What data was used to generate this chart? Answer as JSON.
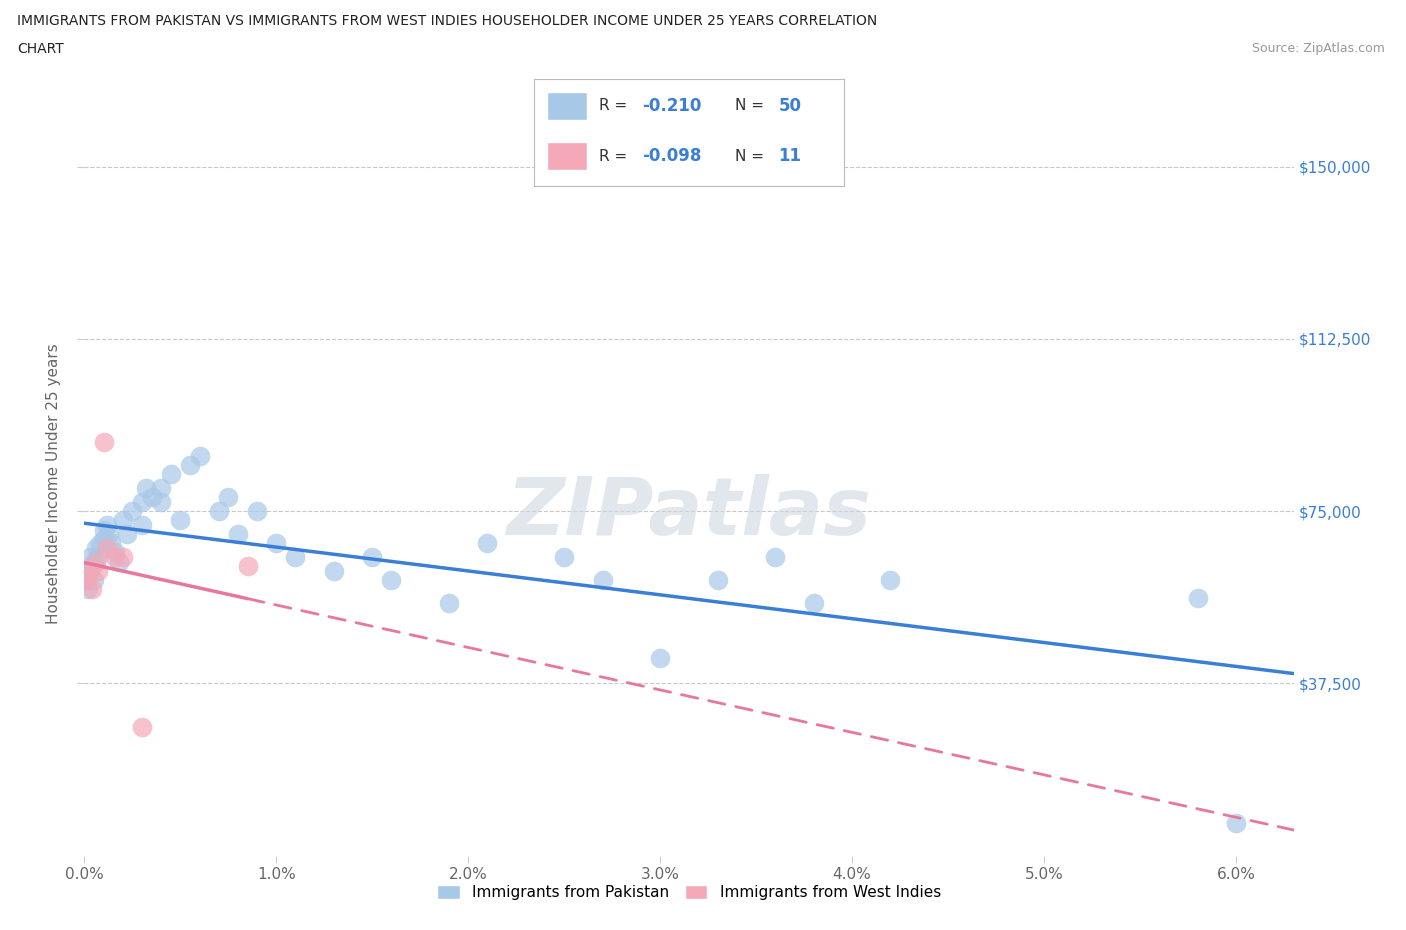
{
  "title_line1": "IMMIGRANTS FROM PAKISTAN VS IMMIGRANTS FROM WEST INDIES HOUSEHOLDER INCOME UNDER 25 YEARS CORRELATION",
  "title_line2": "CHART",
  "source_text": "Source: ZipAtlas.com",
  "ylabel": "Householder Income Under 25 years",
  "xlim": [
    0.0,
    0.063
  ],
  "ylim": [
    0,
    162000
  ],
  "ytick_values": [
    37500,
    75000,
    112500,
    150000
  ],
  "ytick_labels_right": [
    "$37,500",
    "$75,000",
    "$112,500",
    "$150,000"
  ],
  "grid_color": "#c8c8c8",
  "background_color": "#ffffff",
  "pakistan_color": "#a8c8e8",
  "west_indies_color": "#f4a8b8",
  "pakistan_line_color": "#3a7fd5",
  "west_indies_line_color": "#e8789a",
  "r_pakistan": -0.21,
  "n_pakistan": 50,
  "r_west_indies": -0.098,
  "n_west_indies": 11,
  "watermark": "ZIPatlas",
  "pakistan_x": [
    0.0001,
    0.0002,
    0.0002,
    0.0003,
    0.0004,
    0.0005,
    0.0005,
    0.0006,
    0.0007,
    0.0008,
    0.001,
    0.001,
    0.0012,
    0.0013,
    0.0014,
    0.0016,
    0.0018,
    0.002,
    0.0022,
    0.0025,
    0.003,
    0.003,
    0.0032,
    0.0035,
    0.004,
    0.004,
    0.0045,
    0.005,
    0.0055,
    0.006,
    0.007,
    0.0075,
    0.008,
    0.009,
    0.01,
    0.011,
    0.013,
    0.015,
    0.016,
    0.019,
    0.021,
    0.025,
    0.027,
    0.03,
    0.033,
    0.036,
    0.038,
    0.042,
    0.058,
    0.06
  ],
  "pakistan_y": [
    60000,
    58000,
    62000,
    65000,
    63000,
    64000,
    60000,
    67000,
    65000,
    68000,
    71000,
    69000,
    72000,
    70000,
    68000,
    66000,
    64000,
    73000,
    70000,
    75000,
    77000,
    72000,
    80000,
    78000,
    80000,
    77000,
    83000,
    73000,
    85000,
    87000,
    75000,
    78000,
    70000,
    75000,
    68000,
    65000,
    62000,
    65000,
    60000,
    55000,
    68000,
    65000,
    60000,
    43000,
    60000,
    65000,
    55000,
    60000,
    56000,
    7000
  ],
  "west_indies_x": [
    0.0001,
    0.0003,
    0.0004,
    0.0006,
    0.0007,
    0.001,
    0.0012,
    0.0016,
    0.002,
    0.003,
    0.0085
  ],
  "west_indies_y": [
    60000,
    62000,
    58000,
    64000,
    62000,
    90000,
    67000,
    65000,
    65000,
    28000,
    63000
  ]
}
